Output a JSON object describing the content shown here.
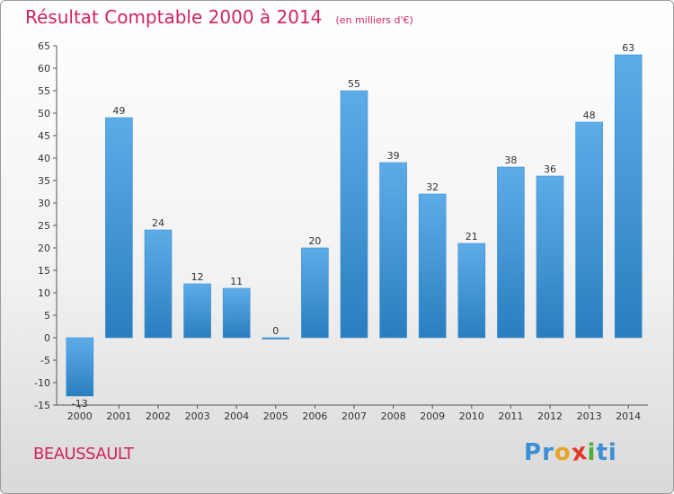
{
  "chart_data": {
    "type": "bar",
    "title": "Résultat Comptable 2000 à 2014",
    "subtitle": "(en milliers d'€)",
    "categories": [
      "2000",
      "2001",
      "2002",
      "2003",
      "2004",
      "2005",
      "2006",
      "2007",
      "2008",
      "2009",
      "2010",
      "2011",
      "2012",
      "2013",
      "2014"
    ],
    "values": [
      -13,
      49,
      24,
      12,
      11,
      0,
      20,
      55,
      39,
      32,
      21,
      38,
      36,
      48,
      63
    ],
    "ylim": [
      -15,
      65
    ],
    "yticks": [
      -15,
      -10,
      -5,
      0,
      5,
      10,
      15,
      20,
      25,
      30,
      35,
      40,
      45,
      50,
      55,
      60,
      65
    ],
    "xlabel": "",
    "ylabel": "",
    "grid": false
  },
  "commune": "BEAUSSAULT",
  "logo": {
    "text": "Proxiti",
    "letters": [
      "P",
      "r",
      "o",
      "x",
      "i",
      "t",
      "i"
    ]
  },
  "colors": {
    "bar_light": "#5dace8",
    "bar_dark": "#2a7ebf",
    "title": "#d0245c",
    "logo_letters": [
      "#3b8fd4",
      "#3b8fd4",
      "#e8a424",
      "#e23a2a",
      "#4fae3b",
      "#3b8fd4",
      "#3b8fd4"
    ]
  }
}
